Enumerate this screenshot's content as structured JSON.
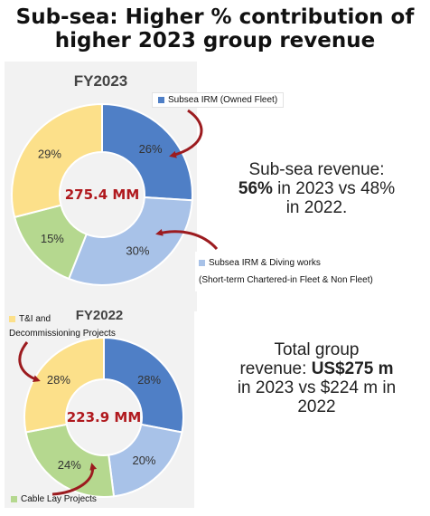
{
  "title": {
    "line1": "Sub-sea: Higher % contribution of",
    "line2": "higher 2023 group revenue"
  },
  "colors": {
    "dark_blue": "#4f7fc6",
    "light_blue": "#a8c2e8",
    "green": "#b5d88f",
    "yellow": "#fce08a",
    "center_text": "#b0191e",
    "arrow": "#9c1b1f"
  },
  "chart_data": [
    {
      "type": "pie",
      "title": "FY2023",
      "center_label": "275.4 MM",
      "slices": [
        {
          "label": "Subsea IRM (Owned Fleet)",
          "value": 26,
          "display": "26%",
          "color": "#4f7fc6"
        },
        {
          "label": "Subsea IRM & Diving works (Short-term Chartered-in Fleet & Non Fleet)",
          "value": 30,
          "display": "30%",
          "color": "#a8c2e8"
        },
        {
          "label": "Cable Lay Projects",
          "value": 15,
          "display": "15%",
          "color": "#b5d88f"
        },
        {
          "label": "T&I and Decommissioning Projects",
          "value": 29,
          "display": "29%",
          "color": "#fce08a"
        }
      ]
    },
    {
      "type": "pie",
      "title": "FY2022",
      "center_label": "223.9 MM",
      "slices": [
        {
          "label": "Subsea IRM (Owned Fleet)",
          "value": 28,
          "display": "28%",
          "color": "#4f7fc6"
        },
        {
          "label": "Subsea IRM & Diving works (Short-term Chartered-in Fleet & Non Fleet)",
          "value": 20,
          "display": "20%",
          "color": "#a8c2e8"
        },
        {
          "label": "Cable Lay Projects",
          "value": 24,
          "display": "24%",
          "color": "#b5d88f"
        },
        {
          "label": "T&I and Decommissioning Projects",
          "value": 28,
          "display": "28%",
          "color": "#fce08a"
        }
      ]
    }
  ],
  "legends": {
    "subsea_owned": "Subsea IRM (Owned Fleet)",
    "subsea_diving_line1": "Subsea IRM & Diving works",
    "subsea_diving_line2": "(Short-term Chartered-in Fleet & Non Fleet)",
    "ti_line1": "T&I and",
    "ti_line2": "Decommissioning Projects",
    "cable_lay": "Cable Lay Projects"
  },
  "notes": {
    "subsea_line1": "Sub-sea revenue:",
    "subsea_bold": "56%",
    "subsea_rest": " in 2023 vs 48%",
    "subsea_line3": "in 2022.",
    "group_line1": "Total group",
    "group_line2a": "revenue: ",
    "group_bold": "US$275 m",
    "group_line3": "in 2023 vs $224 m in",
    "group_line4": "2022"
  }
}
